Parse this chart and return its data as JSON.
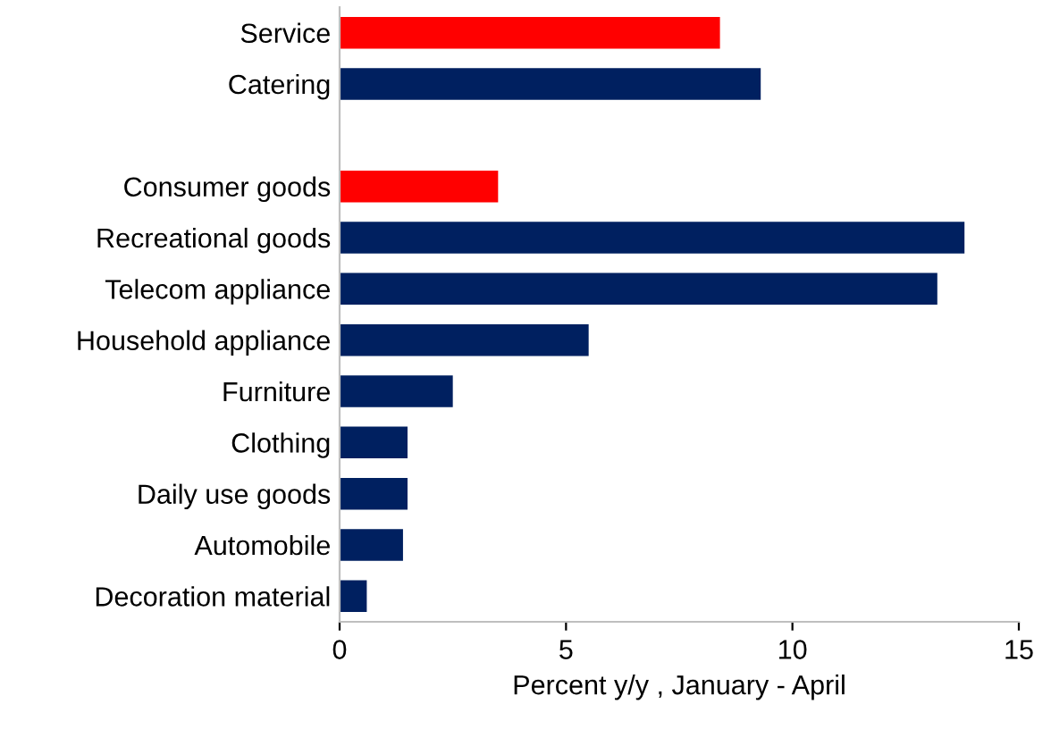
{
  "chart_data": {
    "type": "bar",
    "orientation": "horizontal",
    "xlabel": "Percent y/y , January - April",
    "categories": [
      "Service",
      "Catering",
      null,
      "Consumer goods",
      "Recreational goods",
      "Telecom appliance",
      "Household appliance",
      "Furniture",
      "Clothing",
      "Daily use goods",
      "Automobile",
      "Decoration material"
    ],
    "values": [
      8.4,
      9.3,
      null,
      3.5,
      13.8,
      13.2,
      5.5,
      2.5,
      1.5,
      1.5,
      1.4,
      0.6
    ],
    "colors": [
      "#ff0000",
      "#002060",
      null,
      "#ff0000",
      "#002060",
      "#002060",
      "#002060",
      "#002060",
      "#002060",
      "#002060",
      "#002060",
      "#002060"
    ],
    "xlim": [
      0,
      15
    ],
    "xticks": [
      0,
      5,
      10,
      15
    ],
    "grid": false,
    "legend": false
  }
}
